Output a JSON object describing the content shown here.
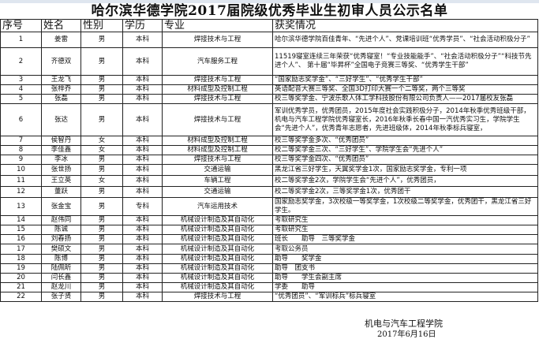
{
  "title": "哈尔滨华德学院2017届院级优秀毕业生初审人员公示名单",
  "headers": [
    "序号",
    "姓名",
    "性别",
    "学历",
    "专业",
    "获奖情况"
  ],
  "rows": [
    [
      "1",
      "姜雷",
      "男",
      "本科",
      "焊接技术与工程",
      "  哈尔滨华德学院百佳青年、“先进个人”、党课培训班“优秀学员”、“社会活动积极分子”"
    ],
    [
      "2",
      "齐德双",
      "男",
      "本科",
      "汽车服务工程",
      "11519寝室连续三年荣获“优秀寝室！“专业技能能手”、“社会活动积极分子”“科技节先进个人”、 第十届“毕昇杯”全国电子竞赛三等奖、“优秀学生干部”"
    ],
    [
      "3",
      "王龙飞",
      "男",
      "本科",
      "焊接技术与工程",
      "“国家励志奖学金”、“三好学生”、“优秀学生干部”"
    ],
    [
      "4",
      "张梓乔",
      "男",
      "本科",
      "材料成型及控制工程",
      "英语配音大赛三等奖、全国3D打印大赛一个二等奖，两个三等奖"
    ],
    [
      "5",
      "张磊",
      "男",
      "本科",
      "焊接技术与工程",
      "校三等奖学金、宁波乐歌人体工学科技股份有限公司负责人——2017届校友张磊"
    ],
    [
      "6",
      "张达",
      "男",
      "本科",
      "焊接技术与工程",
      "军训优秀学员，优秀团员，2015年度社会实践积极分子，2014年秋季优秀班级干部，机电与汽车工程学院优秀寝室长，2016年秋季长春中国一汽优秀实习生，学院学生会“先进个人”，优秀青年志愿者，先进班级体，2014年秋季标兵寝室，"
    ],
    [
      "7",
      "侯智丹",
      "女",
      "本科",
      "材料成型及控制工程",
      "校三等奖学金多次、“优秀团员”"
    ],
    [
      "8",
      "李佳鑫",
      "女",
      "本科",
      "材料成型及控制工程",
      "校二等奖学金三次、“三好学生”、学院学生会“先进个人”"
    ],
    [
      "9",
      "李冰",
      "男",
      "本科",
      "焊接技术与工程",
      "校三等奖学金四次、“优秀团员”"
    ],
    [
      "10",
      "张世扬",
      "男",
      "本科",
      "交通运输",
      "黑龙江省三好学生，天翼奖学金1次，国家励志奖学金，专利一项"
    ],
    [
      "11",
      "王立英",
      "女",
      "本科",
      "车辆工程",
      "校二等奖学金2次，学院学生会“先进个人”，优秀团员，"
    ],
    [
      "12",
      "董跃",
      "男",
      "本科",
      "交通运输",
      "校二等奖学金2次，三等奖学金1次，优秀团干"
    ],
    [
      "13",
      "张金宝",
      "男",
      "专科",
      "汽车运用技术",
      "国家励志奖学金，3次校级一等奖学金，1次校级二等奖学金，优秀团干，黑龙江省三好学生。"
    ],
    [
      "14",
      "赵伟同",
      "男",
      "本科",
      "机械设计制造及其自动化",
      "考取研究生"
    ],
    [
      "15",
      "陈诚",
      "男",
      "本科",
      "机械设计制造及其自动化",
      "考取研究生"
    ],
    [
      "16",
      "刘春扬",
      "男",
      "本科",
      "机械设计制造及其自动化",
      "班长　　助导　三等奖学金"
    ],
    [
      "17",
      "樊硕文",
      "男",
      "本科",
      "机械设计制造及其自动化",
      "考取公务员"
    ],
    [
      "18",
      "陈博",
      "男",
      "本科",
      "机械设计制造及其自动化",
      "助导　　奖学金"
    ],
    [
      "19",
      "陆佩昕",
      "男",
      "本科",
      "机械设计制造及其自动化",
      "助导　团支书"
    ],
    [
      "20",
      "闫长鑫",
      "男",
      "本科",
      "机械设计制造及其自动化",
      "助导　　学生会副主席"
    ],
    [
      "21",
      "赵龙川",
      "男",
      "本科",
      "机械设计制造及其自动化",
      "学委　　助导"
    ],
    [
      "22",
      "张子贤",
      "男",
      "本科",
      "焊接技术与工程",
      "“优秀团员”、“军训标兵”标兵寝室"
    ]
  ],
  "footer": {
    "org": "机电与汽车工程学院",
    "date": "2017年6月16日"
  }
}
